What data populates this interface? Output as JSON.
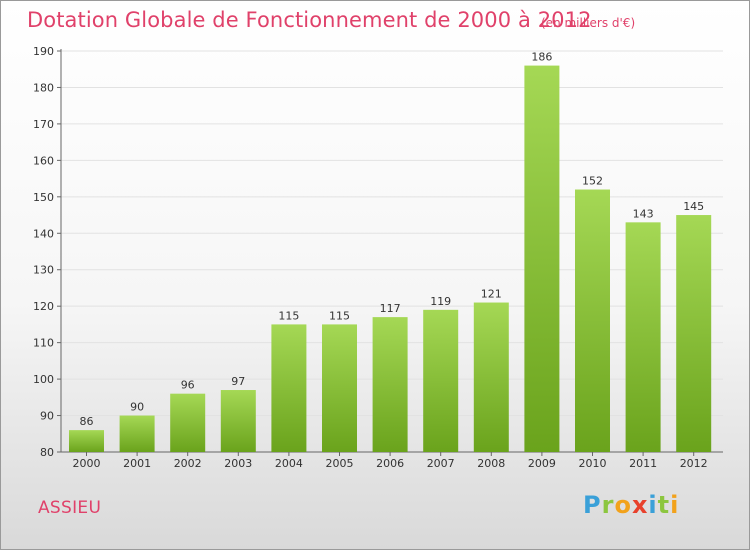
{
  "header": {
    "title": "Dotation Globale de Fonctionnement de 2000 à 2012",
    "unit_note": "(en milliers d'€)"
  },
  "footer": {
    "town": "ASSIEU",
    "brand_logo": "Proxiti"
  },
  "colors": {
    "title": "#e0416a",
    "bar_light": "#a5d855",
    "bar_dark": "#6aa31c",
    "axis": "#666666",
    "grid": "#e2e2e2"
  },
  "chart_data": {
    "type": "bar",
    "categories": [
      "2000",
      "2001",
      "2002",
      "2003",
      "2004",
      "2005",
      "2006",
      "2007",
      "2008",
      "2009",
      "2010",
      "2011",
      "2012"
    ],
    "values": [
      86,
      90,
      96,
      97,
      115,
      115,
      117,
      119,
      121,
      186,
      152,
      143,
      145
    ],
    "ylim": [
      80,
      190
    ],
    "yticks": [
      80,
      90,
      100,
      110,
      120,
      130,
      140,
      150,
      160,
      170,
      180,
      190
    ],
    "grid": true,
    "data_labels": true
  }
}
